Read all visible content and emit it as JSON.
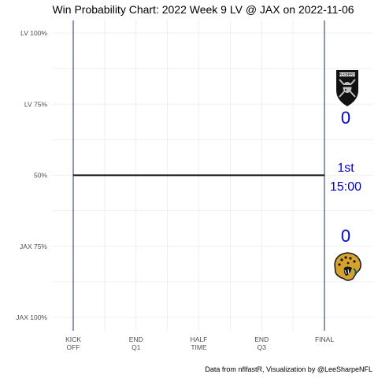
{
  "chart_data": {
    "type": "line",
    "title": "Win Probability Chart: 2022 Week 9 LV @ JAX on 2022-11-06",
    "ylim": [
      0,
      1
    ],
    "y_ticks": [
      {
        "value": 1.0,
        "label": "LV 100%"
      },
      {
        "value": 0.75,
        "label": "LV 75%"
      },
      {
        "value": 0.5,
        "label": "50%"
      },
      {
        "value": 0.25,
        "label": "JAX 75%"
      },
      {
        "value": 0.0,
        "label": "JAX 100%"
      }
    ],
    "xlim": [
      0,
      3600
    ],
    "x_ticks": [
      {
        "value": 0,
        "line1": "KICK",
        "line2": "OFF"
      },
      {
        "value": 900,
        "line1": "END",
        "line2": "Q1"
      },
      {
        "value": 1800,
        "line1": "HALF",
        "line2": "TIME"
      },
      {
        "value": 2700,
        "line1": "END",
        "line2": "Q3"
      },
      {
        "value": 3600,
        "line1": "FINAL",
        "line2": ""
      }
    ],
    "series": [
      {
        "x": [
          0,
          3600
        ],
        "y": [
          0.5,
          0.5
        ]
      }
    ],
    "grid": true,
    "annotations": {
      "away_team": "LV",
      "home_team": "JAX",
      "away_score": "0",
      "home_score": "0",
      "quarter": "1st",
      "clock": "15:00"
    },
    "caption": "Data from nflfastR, Visualization by @LeeSharpeNFL"
  },
  "colors": {
    "wp_line": "#000000",
    "boundary": "#1f2a7a",
    "grid": "#ebebeb",
    "score_text": "#0000ee"
  },
  "icons": {
    "away_logo": "raiders-shield-logo",
    "home_logo": "jaguars-head-logo"
  }
}
